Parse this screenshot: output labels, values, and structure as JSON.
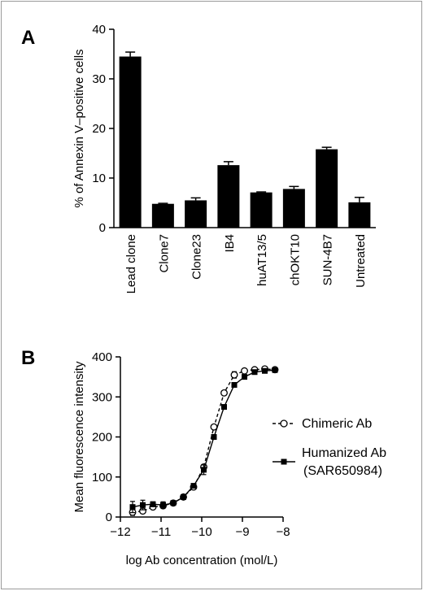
{
  "panels": {
    "a_label": "A",
    "b_label": "B"
  },
  "chart_data": [
    {
      "type": "bar",
      "panel": "A",
      "title": "",
      "ylabel": "% of Annexin V–positive cells",
      "xlabel": "",
      "categories": [
        "Lead clone",
        "Clone7",
        "Clone23",
        "IB4",
        "huAT13/5",
        "chOKT10",
        "SUN-4B7",
        "Untreated"
      ],
      "values": [
        34.5,
        4.8,
        5.5,
        12.6,
        7.1,
        7.8,
        15.8,
        5.1
      ],
      "errors": [
        0.9,
        0.1,
        0.5,
        0.7,
        0.1,
        0.5,
        0.4,
        1.0
      ],
      "ylim": [
        0,
        40
      ],
      "yticks": [
        "0",
        "10",
        "20",
        "30",
        "40"
      ],
      "bar_color": "#000000",
      "grid": false
    },
    {
      "type": "line",
      "panel": "B",
      "title": "",
      "xlabel": "log Ab concentration (mol/L)",
      "ylabel": "Mean fluorescence intensity",
      "xlim": [
        -12,
        -8
      ],
      "ylim": [
        0,
        400
      ],
      "xticks": [
        "−12",
        "−11",
        "−10",
        "−9",
        "−8"
      ],
      "yticks": [
        "0",
        "100",
        "200",
        "300",
        "400"
      ],
      "grid": false,
      "legend_position": "right",
      "series": [
        {
          "name": "Chimeric Ab",
          "marker": "open-circle",
          "line_style": "dashed",
          "x": [
            -11.7,
            -11.45,
            -11.2,
            -10.95,
            -10.7,
            -10.45,
            -10.2,
            -9.95,
            -9.7,
            -9.45,
            -9.2,
            -8.95,
            -8.7,
            -8.45,
            -8.2
          ],
          "y": [
            12,
            15,
            25,
            28,
            35,
            50,
            75,
            125,
            225,
            310,
            355,
            365,
            368,
            370,
            368
          ],
          "errors": [
            8,
            6,
            5,
            4,
            3,
            3,
            4,
            6,
            5,
            4,
            8,
            5,
            3,
            3,
            3
          ]
        },
        {
          "name": "Humanized Ab\n(SAR650984)",
          "name_line1": "Humanized Ab",
          "name_line2": "(SAR650984)",
          "marker": "filled-square",
          "line_style": "solid",
          "x": [
            -11.7,
            -11.45,
            -11.2,
            -10.95,
            -10.7,
            -10.45,
            -10.2,
            -9.95,
            -9.7,
            -9.45,
            -9.2,
            -8.95,
            -8.7,
            -8.45,
            -8.2
          ],
          "y": [
            25,
            30,
            32,
            30,
            35,
            50,
            78,
            118,
            200,
            275,
            330,
            350,
            362,
            365,
            367
          ],
          "errors": [
            14,
            12,
            6,
            8,
            4,
            3,
            5,
            12,
            6,
            4,
            5,
            4,
            4,
            3,
            3
          ]
        }
      ]
    }
  ]
}
